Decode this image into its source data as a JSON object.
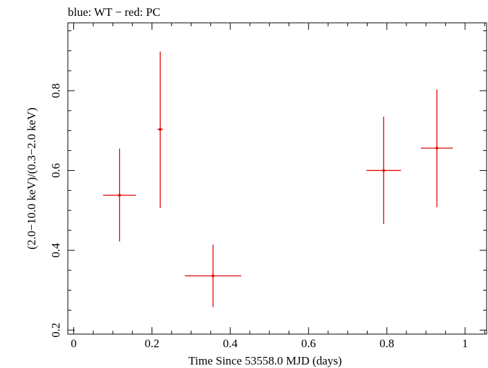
{
  "chart_data": {
    "type": "scatter",
    "title": "blue: WT − red: PC",
    "xlabel": "Time Since 53558.0 MJD (days)",
    "ylabel": "(2.0−10.0 keV)/(0.3−2.0 keV)",
    "xlim": [
      -0.015,
      1.055
    ],
    "ylim": [
      0.19,
      0.97
    ],
    "x_ticks": [
      {
        "value": 0,
        "label": "0"
      },
      {
        "value": 0.2,
        "label": "0.2"
      },
      {
        "value": 0.4,
        "label": "0.4"
      },
      {
        "value": 0.6,
        "label": "0.6"
      },
      {
        "value": 0.8,
        "label": "0.8"
      },
      {
        "value": 1,
        "label": "1"
      }
    ],
    "y_ticks": [
      {
        "value": 0.2,
        "label": "0.2"
      },
      {
        "value": 0.4,
        "label": "0.4"
      },
      {
        "value": 0.6,
        "label": "0.6"
      },
      {
        "value": 0.8,
        "label": "0.8"
      }
    ],
    "x_minor_step": 0.05,
    "y_minor_step": 0.05,
    "series": [
      {
        "color": "#e00000",
        "points": [
          {
            "x": 0.117,
            "y": 0.538,
            "xerr": 0.042,
            "ylo": 0.422,
            "yhi": 0.655
          },
          {
            "x": 0.221,
            "y": 0.703,
            "xerr": 0.007,
            "ylo": 0.506,
            "yhi": 0.898
          },
          {
            "x": 0.356,
            "y": 0.336,
            "xerr": 0.072,
            "ylo": 0.258,
            "yhi": 0.414
          },
          {
            "x": 0.792,
            "y": 0.6,
            "xerr": 0.044,
            "ylo": 0.466,
            "yhi": 0.735
          },
          {
            "x": 0.928,
            "y": 0.656,
            "xerr": 0.041,
            "ylo": 0.508,
            "yhi": 0.803
          }
        ]
      }
    ],
    "grid": false,
    "legend": "none"
  }
}
